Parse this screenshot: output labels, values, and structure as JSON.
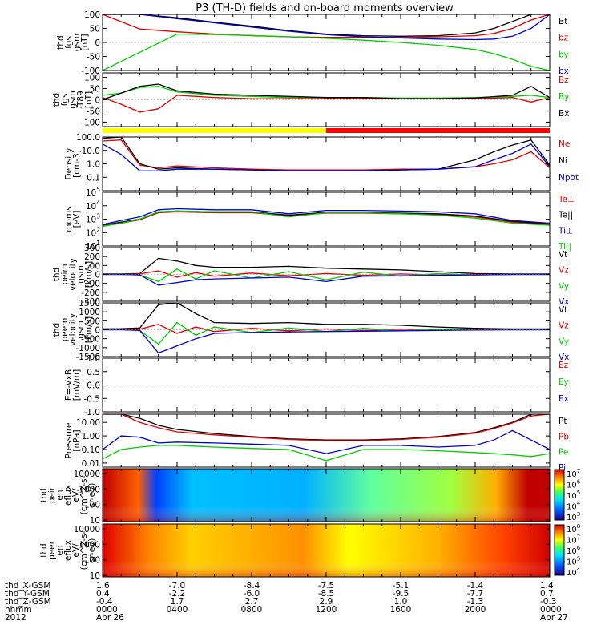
{
  "title": "P3 (TH-D) fields and on-board moments overview",
  "chart_data": [
    {
      "type": "line",
      "ylabel": [
        "thd",
        "fgs",
        "gsm",
        "[nT]"
      ],
      "ylim": [
        -100,
        100
      ],
      "yticks": [
        100,
        50,
        0,
        -50,
        -100
      ],
      "x": [
        0,
        2,
        4,
        6,
        8,
        10,
        12,
        14,
        16,
        18,
        20,
        21,
        22,
        23,
        24
      ],
      "series": [
        {
          "name": "Bt",
          "color": "#000000",
          "values": [
            100,
            100,
            88,
            72,
            58,
            42,
            30,
            24,
            22,
            24,
            34,
            50,
            75,
            100,
            100
          ]
        },
        {
          "name": "bz",
          "color": "#e00000",
          "values": [
            100,
            48,
            38,
            30,
            24,
            20,
            18,
            18,
            18,
            20,
            24,
            32,
            50,
            80,
            100
          ]
        },
        {
          "name": "by",
          "color": "#00cc00",
          "values": [
            -100,
            -35,
            30,
            28,
            25,
            20,
            15,
            8,
            0,
            -10,
            -25,
            -40,
            -60,
            -85,
            -100
          ]
        },
        {
          "name": "bx",
          "color": "#0000cc",
          "values": [
            100,
            100,
            85,
            70,
            55,
            40,
            28,
            20,
            16,
            12,
            10,
            12,
            22,
            50,
            100
          ]
        }
      ]
    },
    {
      "type": "line",
      "ylabel": [
        "thd",
        "fgs",
        "gsm",
        "-T89",
        "[nT]"
      ],
      "ylim": [
        -120,
        120
      ],
      "yticks": [
        100,
        50,
        0,
        -50,
        -100
      ],
      "x": [
        0,
        1,
        2,
        3,
        4,
        6,
        8,
        10,
        12,
        14,
        16,
        18,
        20,
        22,
        23,
        24
      ],
      "series": [
        {
          "name": "Bz",
          "color": "#e00000",
          "values": [
            10,
            -20,
            -55,
            -40,
            20,
            10,
            5,
            5,
            5,
            5,
            5,
            5,
            5,
            10,
            -10,
            10
          ]
        },
        {
          "name": "By",
          "color": "#00cc00",
          "values": [
            20,
            30,
            55,
            60,
            35,
            20,
            15,
            10,
            10,
            10,
            8,
            8,
            10,
            15,
            20,
            10
          ]
        },
        {
          "name": "Bx",
          "color": "#000000",
          "values": [
            0,
            30,
            60,
            70,
            40,
            25,
            20,
            15,
            10,
            10,
            5,
            5,
            8,
            20,
            60,
            10
          ]
        }
      ]
    },
    {
      "type": "line",
      "yscale": "log",
      "ylabel": [
        "Density",
        "[cm-3]"
      ],
      "ylim": [
        0.01,
        100
      ],
      "yticks": [
        "100.0",
        "10.0",
        "1.0",
        "0.1"
      ],
      "x": [
        0,
        1,
        2,
        3,
        4,
        6,
        8,
        10,
        12,
        14,
        16,
        18,
        20,
        21,
        22,
        23,
        24
      ],
      "series": [
        {
          "name": "Ne",
          "color": "#e00000",
          "values": [
            50,
            60,
            0.8,
            0.5,
            0.7,
            0.5,
            0.4,
            0.35,
            0.35,
            0.35,
            0.4,
            0.4,
            0.6,
            1,
            2,
            8,
            0.5
          ]
        },
        {
          "name": "Ni",
          "color": "#000000",
          "values": [
            80,
            100,
            1.0,
            0.4,
            0.5,
            0.4,
            0.35,
            0.3,
            0.3,
            0.3,
            0.35,
            0.4,
            2,
            8,
            25,
            60,
            0.8
          ]
        },
        {
          "name": "Npot",
          "color": "#0000cc",
          "values": [
            30,
            5,
            0.3,
            0.3,
            0.4,
            0.4,
            0.35,
            0.3,
            0.3,
            0.3,
            0.35,
            0.4,
            0.6,
            2,
            6,
            30,
            0.6
          ]
        }
      ]
    },
    {
      "type": "line",
      "yscale": "log",
      "ylabel": [
        "moms",
        "[eV]"
      ],
      "ylim": [
        10,
        100000
      ],
      "yticks": [
        "10^5",
        "10^4",
        "10^3",
        "10^2",
        "10^1"
      ],
      "x": [
        0,
        1,
        2,
        3,
        4,
        6,
        8,
        10,
        12,
        14,
        16,
        18,
        20,
        22,
        24
      ],
      "series": [
        {
          "name": "Te⊥",
          "color": "#e00000",
          "values": [
            300,
            500,
            900,
            3000,
            3500,
            3000,
            3000,
            1800,
            2800,
            2800,
            2500,
            2200,
            1500,
            600,
            400
          ]
        },
        {
          "name": "Te||",
          "color": "#000000",
          "values": [
            350,
            600,
            1000,
            3500,
            4000,
            3500,
            3500,
            2000,
            3200,
            3200,
            2800,
            2500,
            1700,
            700,
            450
          ]
        },
        {
          "name": "Ti⊥",
          "color": "#0000cc",
          "values": [
            400,
            800,
            1500,
            5000,
            6000,
            5000,
            5000,
            2500,
            4500,
            4500,
            4000,
            3500,
            2500,
            800,
            500
          ]
        },
        {
          "name": "Ti||",
          "color": "#00cc00",
          "values": [
            300,
            500,
            1000,
            3500,
            4000,
            3500,
            3500,
            1500,
            3000,
            3000,
            2500,
            2000,
            1200,
            500,
            350
          ]
        }
      ]
    },
    {
      "type": "line",
      "ylabel": [
        "thd",
        "peim",
        "velocity",
        "gsm",
        "[km/s]"
      ],
      "ylim": [
        -300,
        300
      ],
      "yticks": [
        300,
        200,
        100,
        0,
        -100,
        -200,
        -300
      ],
      "x": [
        0,
        1,
        2,
        3,
        4,
        5,
        6,
        8,
        10,
        12,
        14,
        16,
        18,
        20,
        22,
        24
      ],
      "series": [
        {
          "name": "Vt",
          "color": "#000000",
          "values": [
            5,
            5,
            10,
            180,
            150,
            100,
            80,
            80,
            90,
            70,
            60,
            50,
            30,
            10,
            5,
            5
          ]
        },
        {
          "name": "Vz",
          "color": "#e00000",
          "values": [
            0,
            0,
            5,
            40,
            -30,
            20,
            -20,
            15,
            -15,
            10,
            -10,
            5,
            -5,
            2,
            0,
            0
          ]
        },
        {
          "name": "Vy",
          "color": "#00cc00",
          "values": [
            0,
            0,
            -5,
            -80,
            60,
            -50,
            40,
            -40,
            30,
            -60,
            25,
            -20,
            10,
            -5,
            0,
            0
          ]
        },
        {
          "name": "Vx",
          "color": "#0000cc",
          "values": [
            0,
            0,
            -5,
            -120,
            -90,
            -60,
            -50,
            -40,
            -30,
            -80,
            -20,
            -15,
            -10,
            -5,
            0,
            0
          ]
        }
      ]
    },
    {
      "type": "line",
      "ylabel": [
        "thd",
        "peem",
        "velocity",
        "gsm",
        "[km/s]"
      ],
      "ylim": [
        -1500,
        1500
      ],
      "yticks": [
        1500,
        1000,
        500,
        0,
        -500,
        -1000,
        -1500
      ],
      "x": [
        0,
        1,
        2,
        3,
        4,
        5,
        6,
        8,
        10,
        12,
        14,
        16,
        18,
        20,
        22,
        24
      ],
      "series": [
        {
          "name": "Vt",
          "color": "#000000",
          "values": [
            50,
            60,
            100,
            1400,
            1500,
            900,
            400,
            350,
            400,
            300,
            300,
            250,
            150,
            80,
            50,
            50
          ]
        },
        {
          "name": "Vz",
          "color": "#e00000",
          "values": [
            0,
            0,
            30,
            300,
            -200,
            150,
            -100,
            80,
            -60,
            50,
            -40,
            30,
            -20,
            10,
            0,
            0
          ]
        },
        {
          "name": "Vy",
          "color": "#00cc00",
          "values": [
            0,
            0,
            -40,
            -800,
            400,
            -300,
            150,
            -150,
            100,
            -100,
            80,
            -60,
            40,
            -20,
            0,
            0
          ]
        },
        {
          "name": "Vx",
          "color": "#0000cc",
          "values": [
            0,
            0,
            -40,
            -1300,
            -900,
            -500,
            -200,
            -150,
            -120,
            -100,
            -80,
            -60,
            -40,
            -20,
            0,
            0
          ]
        }
      ]
    },
    {
      "type": "line",
      "ylabel": [
        "E=-VxB",
        "[mV/m]"
      ],
      "ylim": [
        -1,
        1
      ],
      "yticks": [
        "1.0",
        "0.5",
        "0.0",
        "-0.5",
        "-1.0"
      ],
      "x": [],
      "series": [
        {
          "name": "Ez",
          "color": "#e00000",
          "values": []
        },
        {
          "name": "Ey",
          "color": "#00cc00",
          "values": []
        },
        {
          "name": "Ex",
          "color": "#0000cc",
          "values": []
        }
      ]
    },
    {
      "type": "line",
      "yscale": "log",
      "ylabel": [
        "Pressure",
        "[nPa]"
      ],
      "ylim": [
        0.005,
        40
      ],
      "yticks": [
        "10.00",
        "1.00",
        "0.10",
        "0.01"
      ],
      "x": [
        0,
        1,
        2,
        3,
        4,
        6,
        8,
        10,
        12,
        14,
        16,
        18,
        20,
        21,
        22,
        23,
        24
      ],
      "series": [
        {
          "name": "Pt",
          "color": "#000000",
          "values": [
            40,
            40,
            20,
            6,
            3,
            1.5,
            0.9,
            0.6,
            0.5,
            0.5,
            0.6,
            0.9,
            1.8,
            4,
            10,
            40,
            40
          ]
        },
        {
          "name": "Pb",
          "color": "#e00000",
          "values": [
            40,
            40,
            10,
            4,
            2,
            1.2,
            0.8,
            0.55,
            0.45,
            0.45,
            0.55,
            0.8,
            1.6,
            3.5,
            9,
            30,
            40
          ]
        },
        {
          "name": "Pe",
          "color": "#00cc00",
          "values": [
            0.02,
            0.1,
            0.15,
            0.2,
            0.2,
            0.15,
            0.12,
            0.1,
            0.015,
            0.1,
            0.1,
            0.08,
            0.06,
            0.05,
            0.04,
            0.03,
            0.05
          ]
        },
        {
          "name": "Pi",
          "color": "#0000cc",
          "values": [
            0.1,
            1.0,
            0.8,
            0.3,
            0.35,
            0.3,
            0.25,
            0.2,
            0.05,
            0.2,
            0.2,
            0.15,
            0.2,
            0.5,
            2.5,
            0.5,
            0.1
          ]
        }
      ]
    },
    {
      "type": "heatmap",
      "ylabel": [
        "thd",
        "peir",
        "en",
        "eflux",
        "eV/",
        "(cm^2-s-",
        "sr-eV)"
      ],
      "yscale": "log",
      "ylim": [
        8,
        20000
      ],
      "yticks": [
        "10000",
        "1000",
        "100",
        "10"
      ],
      "colorbar": {
        "min_exp": 3,
        "max_exp": 7,
        "ticks": [
          "10^7",
          "10^6",
          "10^5",
          "10^4",
          "10^3"
        ]
      }
    },
    {
      "type": "heatmap",
      "ylabel": [
        "thd",
        "peer",
        "en",
        "eflux",
        "eV/",
        "(cm^2-s-",
        "sr-eV)"
      ],
      "yscale": "log",
      "ylim": [
        8,
        20000
      ],
      "yticks": [
        "10000",
        "1000",
        "100",
        "10"
      ],
      "colorbar": {
        "min_exp": 4,
        "max_exp": 8,
        "ticks": [
          "10^8",
          "10^7",
          "10^6",
          "10^5",
          "10^4"
        ]
      }
    }
  ],
  "xaxis": {
    "range_hours": [
      0,
      24
    ],
    "tick_hours": [
      0,
      4,
      8,
      12,
      16,
      20,
      24
    ],
    "row_labels": [
      "thd_X-GSM",
      "thd_Y-GSM",
      "thd_Z-GSM",
      "hhmm",
      "2012"
    ],
    "columns": [
      [
        "1.6",
        "0.4",
        "-0.4",
        "0000",
        "Apr 26"
      ],
      [
        "-7.0",
        "-2.2",
        "1.7",
        "0400",
        ""
      ],
      [
        "-8.4",
        "-6.0",
        "2.7",
        "0800",
        ""
      ],
      [
        "-7.5",
        "-8.5",
        "2.9",
        "1200",
        ""
      ],
      [
        "-5.1",
        "-9.5",
        "1.0",
        "1600",
        ""
      ],
      [
        "-1.4",
        "-7.7",
        "-1.3",
        "2000",
        ""
      ],
      [
        "1.4",
        "0.7",
        "-0.3",
        "0000",
        "Apr 27"
      ]
    ]
  },
  "mode_bar": [
    {
      "from_hour": 0,
      "to_hour": 12,
      "color": "#ffff00"
    },
    {
      "from_hour": 12,
      "to_hour": 24,
      "color": "#ff0000"
    }
  ]
}
